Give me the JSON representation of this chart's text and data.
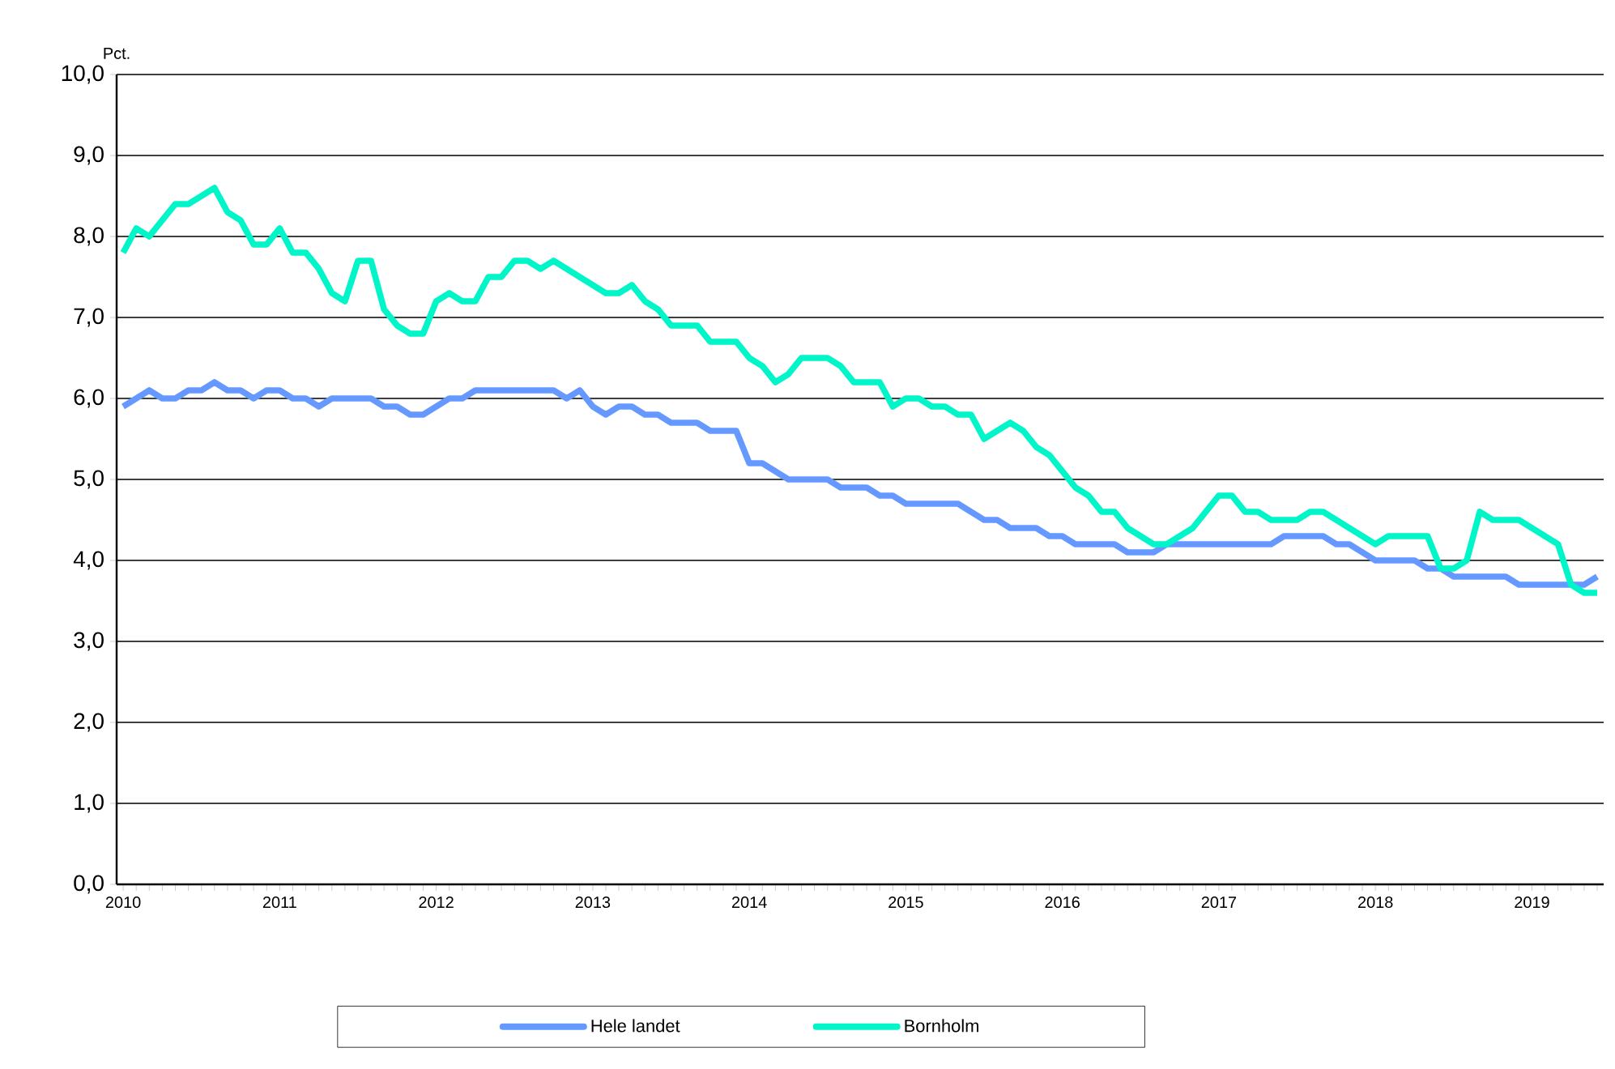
{
  "chart_data": {
    "type": "line",
    "ylabel": "Pct.",
    "categories": [
      "2010",
      null,
      null,
      null,
      null,
      null,
      null,
      null,
      null,
      null,
      null,
      null,
      "2011",
      null,
      null,
      null,
      null,
      null,
      null,
      null,
      null,
      null,
      null,
      null,
      "2012",
      null,
      null,
      null,
      null,
      null,
      null,
      null,
      null,
      null,
      null,
      null,
      "2013",
      null,
      null,
      null,
      null,
      null,
      null,
      null,
      null,
      null,
      null,
      null,
      "2014",
      null,
      null,
      null,
      null,
      null,
      null,
      null,
      null,
      null,
      null,
      null,
      "2015",
      null,
      null,
      null,
      null,
      null,
      null,
      null,
      null,
      null,
      null,
      null,
      "2016",
      null,
      null,
      null,
      null,
      null,
      null,
      null,
      null,
      null,
      null,
      null,
      "2017",
      null,
      null,
      null,
      null,
      null,
      null,
      null,
      null,
      null,
      null,
      null,
      "2018",
      null,
      null,
      null,
      null,
      null,
      null,
      null,
      null,
      null,
      null,
      null,
      "2019",
      null,
      null,
      null,
      null,
      null
    ],
    "series": [
      {
        "name": "Hele landet",
        "color": "#6699ff",
        "values": [
          5.9,
          6.0,
          6.1,
          6.0,
          6.0,
          6.1,
          6.1,
          6.2,
          6.1,
          6.1,
          6.0,
          6.1,
          6.1,
          6.0,
          6.0,
          5.9,
          6.0,
          6.0,
          6.0,
          6.0,
          5.9,
          5.9,
          5.8,
          5.8,
          5.9,
          6.0,
          6.0,
          6.1,
          6.1,
          6.1,
          6.1,
          6.1,
          6.1,
          6.1,
          6.0,
          6.1,
          5.9,
          5.8,
          5.9,
          5.9,
          5.8,
          5.8,
          5.7,
          5.7,
          5.7,
          5.6,
          5.6,
          5.6,
          5.2,
          5.2,
          5.1,
          5.0,
          5.0,
          5.0,
          5.0,
          4.9,
          4.9,
          4.9,
          4.8,
          4.8,
          4.7,
          4.7,
          4.7,
          4.7,
          4.7,
          4.6,
          4.5,
          4.5,
          4.4,
          4.4,
          4.4,
          4.3,
          4.3,
          4.2,
          4.2,
          4.2,
          4.2,
          4.1,
          4.1,
          4.1,
          4.2,
          4.2,
          4.2,
          4.2,
          4.2,
          4.2,
          4.2,
          4.2,
          4.2,
          4.3,
          4.3,
          4.3,
          4.3,
          4.2,
          4.2,
          4.1,
          4.0,
          4.0,
          4.0,
          4.0,
          3.9,
          3.9,
          3.8,
          3.8,
          3.8,
          3.8,
          3.8,
          3.7,
          3.7,
          3.7,
          3.7,
          3.7,
          3.7,
          3.8
        ]
      },
      {
        "name": "Bornholm",
        "color": "#00f5c8",
        "values": [
          7.8,
          8.1,
          8.0,
          8.2,
          8.4,
          8.4,
          8.5,
          8.6,
          8.3,
          8.2,
          7.9,
          7.9,
          8.1,
          7.8,
          7.8,
          7.6,
          7.3,
          7.2,
          7.7,
          7.7,
          7.1,
          6.9,
          6.8,
          6.8,
          7.2,
          7.3,
          7.2,
          7.2,
          7.5,
          7.5,
          7.7,
          7.7,
          7.6,
          7.7,
          7.6,
          7.5,
          7.4,
          7.3,
          7.3,
          7.4,
          7.2,
          7.1,
          6.9,
          6.9,
          6.9,
          6.7,
          6.7,
          6.7,
          6.5,
          6.4,
          6.2,
          6.3,
          6.5,
          6.5,
          6.5,
          6.4,
          6.2,
          6.2,
          6.2,
          5.9,
          6.0,
          6.0,
          5.9,
          5.9,
          5.8,
          5.8,
          5.5,
          5.6,
          5.7,
          5.6,
          5.4,
          5.3,
          5.1,
          4.9,
          4.8,
          4.6,
          4.6,
          4.4,
          4.3,
          4.2,
          4.2,
          4.3,
          4.4,
          4.6,
          4.8,
          4.8,
          4.6,
          4.6,
          4.5,
          4.5,
          4.5,
          4.6,
          4.6,
          4.5,
          4.4,
          4.3,
          4.2,
          4.3,
          4.3,
          4.3,
          4.3,
          3.9,
          3.9,
          4.0,
          4.6,
          4.5,
          4.5,
          4.5,
          4.4,
          4.3,
          4.2,
          3.7,
          3.6,
          3.6
        ]
      }
    ],
    "ylim": [
      0,
      10
    ],
    "yticks": [
      {
        "value": 0,
        "label": "0,0"
      },
      {
        "value": 1,
        "label": "1,0"
      },
      {
        "value": 2,
        "label": "2,0"
      },
      {
        "value": 3,
        "label": "3,0"
      },
      {
        "value": 4,
        "label": "4,0"
      },
      {
        "value": 5,
        "label": "5,0"
      },
      {
        "value": 6,
        "label": "6,0"
      },
      {
        "value": 7,
        "label": "7,0"
      },
      {
        "value": 8,
        "label": "8,0"
      },
      {
        "value": 9,
        "label": "9,0"
      },
      {
        "value": 10,
        "label": "10,0"
      }
    ],
    "grid": "y",
    "legend": "bottom",
    "marker": "none",
    "line_style": "solid"
  }
}
